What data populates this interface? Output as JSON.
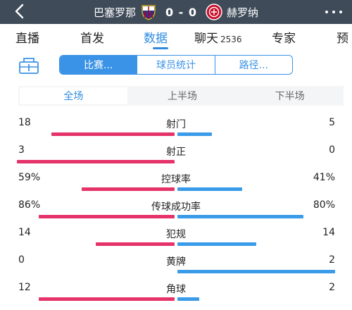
{
  "header": {
    "home_team": "巴塞罗那",
    "away_team": "赫罗纳",
    "score": "0 - 0",
    "colors": {
      "bar": "#3f4b59",
      "home_badge": [
        "#1b3f8f",
        "#a5003a",
        "#f1c40f"
      ],
      "away_badge": [
        "#c8102e",
        "#ffffff"
      ]
    }
  },
  "nav": {
    "tabs": [
      {
        "label": "直播"
      },
      {
        "label": "首发"
      },
      {
        "label": "数据"
      },
      {
        "label": "聊天",
        "count": "2536"
      },
      {
        "label": "专家"
      },
      {
        "label": "预"
      }
    ],
    "active": "数据"
  },
  "subnav": {
    "segments": [
      "比赛...",
      "球员统计",
      "路径..."
    ],
    "active": "比赛..."
  },
  "period": {
    "tabs": [
      "全场",
      "上半场",
      "下半场"
    ],
    "active": "全场"
  },
  "stats": [
    {
      "label": "射门",
      "home": "18",
      "away": "5",
      "home_frac": 0.78,
      "away_frac": 0.22
    },
    {
      "label": "射正",
      "home": "3",
      "away": "0",
      "home_frac": 1.0,
      "away_frac": 0.0
    },
    {
      "label": "控球率",
      "home": "59%",
      "away": "41%",
      "home_frac": 0.59,
      "away_frac": 0.41
    },
    {
      "label": "传球成功率",
      "home": "86%",
      "away": "80%",
      "home_frac": 0.86,
      "away_frac": 0.8
    },
    {
      "label": "犯规",
      "home": "14",
      "away": "14",
      "home_frac": 0.5,
      "away_frac": 0.5
    },
    {
      "label": "黄牌",
      "home": "0",
      "away": "2",
      "home_frac": 0.0,
      "away_frac": 1.0
    },
    {
      "label": "角球",
      "home": "12",
      "away": "2",
      "home_frac": 0.86,
      "away_frac": 0.14
    }
  ],
  "bar_colors": {
    "home": "#e5336a",
    "away": "#3a9be8"
  }
}
